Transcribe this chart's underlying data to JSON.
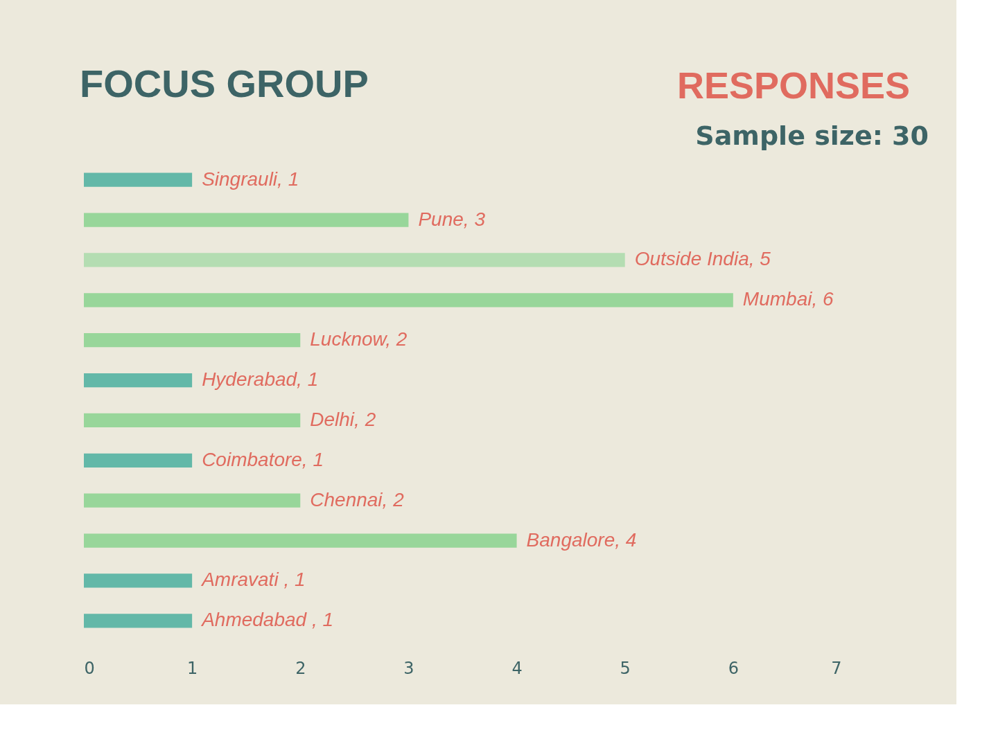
{
  "chart_data": {
    "type": "bar",
    "orientation": "horizontal",
    "title": "FOCUS GROUP",
    "subtitle": "RESPONSES",
    "annotations": [
      "Sample size: 30"
    ],
    "categories": [
      null,
      null,
      null,
      null,
      null,
      null,
      null,
      null,
      null,
      null,
      null,
      null
    ],
    "values": [
      1,
      3,
      5,
      6,
      2,
      1,
      2,
      1,
      2,
      4,
      1,
      1
    ],
    "colors": [
      "#63b8a8",
      "#98d69a",
      "#b4ddb2",
      "#98d69a",
      "#98d69a",
      "#63b8a8",
      "#98d69a",
      "#63b8a8",
      "#98d69a",
      "#98d69a",
      "#63b8a8",
      "#63b8a8"
    ],
    "value_labels": [
      "Singrauli, 1",
      "Pune, 3",
      "Outside India, 5",
      "Mumbai, 6",
      "Lucknow, 2",
      "Hyderabad, 1",
      "Delhi, 2",
      "Coimbatore, 1",
      "Chennai, 2",
      "Bangalore, 4",
      "Amravati , 1",
      "Ahmedabad , 1"
    ],
    "xlim": [
      0,
      7
    ],
    "xticks": [
      0,
      1,
      2,
      3,
      4,
      5,
      6,
      7
    ],
    "tick_labels": "x"
  }
}
